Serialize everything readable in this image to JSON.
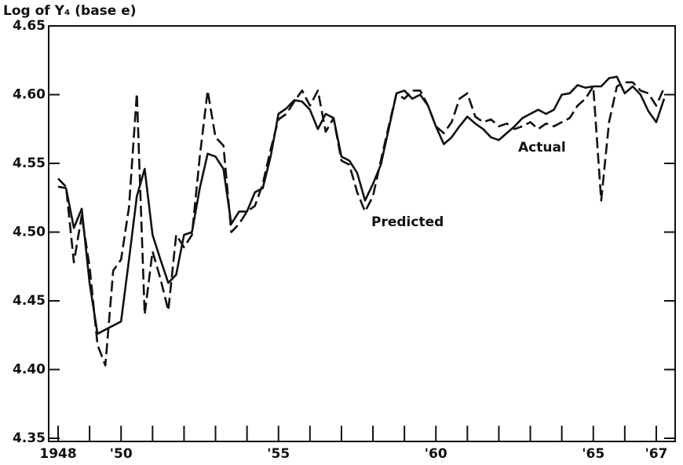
{
  "chart_data": {
    "type": "line",
    "y_axis_label": "Log of Y₄ (base e)",
    "x": [
      1948,
      1948.25,
      1948.5,
      1948.75,
      1949,
      1949.25,
      1949.5,
      1949.75,
      1950,
      1950.25,
      1950.5,
      1950.75,
      1951,
      1951.25,
      1951.5,
      1951.75,
      1952,
      1952.25,
      1952.5,
      1952.75,
      1953,
      1953.25,
      1953.5,
      1953.75,
      1954,
      1954.25,
      1954.5,
      1954.75,
      1955,
      1955.25,
      1955.5,
      1955.75,
      1956,
      1956.25,
      1956.5,
      1956.75,
      1957,
      1957.25,
      1957.5,
      1957.75,
      1958,
      1958.25,
      1958.5,
      1958.75,
      1959,
      1959.25,
      1959.5,
      1959.75,
      1960,
      1960.25,
      1960.5,
      1960.75,
      1961,
      1961.25,
      1961.5,
      1961.75,
      1962,
      1962.25,
      1962.5,
      1962.75,
      1963,
      1963.25,
      1963.5,
      1963.75,
      1964,
      1964.25,
      1964.5,
      1964.75,
      1965,
      1965.25,
      1965.5,
      1965.75,
      1966,
      1966.25,
      1966.5,
      1966.75,
      1967,
      1967.25
    ],
    "series": [
      {
        "name": "Actual",
        "color": "#111111",
        "dashed": false,
        "values": [
          4.533,
          4.532,
          4.503,
          4.517,
          4.463,
          4.426,
          4.429,
          4.432,
          4.435,
          4.48,
          4.526,
          4.546,
          4.498,
          4.48,
          4.463,
          4.469,
          4.498,
          4.5,
          4.532,
          4.557,
          4.555,
          4.546,
          4.506,
          4.515,
          4.515,
          4.529,
          4.532,
          4.555,
          4.586,
          4.59,
          4.596,
          4.595,
          4.589,
          4.575,
          4.586,
          4.583,
          4.555,
          4.552,
          4.543,
          4.523,
          4.535,
          4.549,
          4.575,
          4.601,
          4.603,
          4.597,
          4.6,
          4.592,
          4.577,
          4.564,
          4.569,
          4.577,
          4.584,
          4.579,
          4.575,
          4.569,
          4.567,
          4.572,
          4.577,
          4.583,
          4.586,
          4.589,
          4.586,
          4.589,
          4.6,
          4.601,
          4.607,
          4.605,
          4.606,
          4.606,
          4.612,
          4.613,
          4.601,
          4.606,
          4.6,
          4.588,
          4.58,
          4.597
        ]
      },
      {
        "name": "Predicted",
        "color": "#111111",
        "dashed": true,
        "values": [
          4.539,
          4.533,
          4.478,
          4.512,
          4.475,
          4.418,
          4.403,
          4.472,
          4.48,
          4.518,
          4.601,
          4.44,
          4.486,
          4.466,
          4.443,
          4.498,
          4.489,
          4.498,
          4.555,
          4.603,
          4.569,
          4.563,
          4.5,
          4.506,
          4.515,
          4.519,
          4.535,
          4.56,
          4.582,
          4.586,
          4.595,
          4.603,
          4.592,
          4.603,
          4.573,
          4.583,
          4.552,
          4.549,
          4.529,
          4.515,
          4.526,
          4.552,
          4.577,
          4.601,
          4.597,
          4.603,
          4.603,
          4.592,
          4.577,
          4.572,
          4.58,
          4.597,
          4.601,
          4.584,
          4.58,
          4.582,
          4.577,
          4.579,
          4.575,
          4.577,
          4.58,
          4.575,
          4.579,
          4.577,
          4.58,
          4.583,
          4.592,
          4.597,
          4.606,
          4.523,
          4.58,
          4.606,
          4.609,
          4.609,
          4.603,
          4.601,
          4.592,
          4.605
        ]
      }
    ],
    "xlim": [
      1947.7,
      1967.6
    ],
    "ylim": [
      4.35,
      4.65
    ],
    "yticks": [
      4.35,
      {
        "value": 4.4,
        "label": "4.40"
      },
      4.45,
      {
        "value": 4.5,
        "label": "4.50"
      },
      4.55,
      {
        "value": 4.6,
        "label": "4.60"
      },
      4.65
    ],
    "xticks": [
      {
        "value": 1948,
        "label": "1948"
      },
      {
        "value": 1950,
        "label": "'50"
      },
      {
        "value": 1955,
        "label": "'55"
      },
      {
        "value": 1960,
        "label": "'60"
      },
      {
        "value": 1965,
        "label": "'65"
      },
      {
        "value": 1967,
        "label": "'67"
      }
    ],
    "xminorticks": [
      1948,
      1949,
      1950,
      1951,
      1952,
      1953,
      1954,
      1955,
      1956,
      1957,
      1958,
      1959,
      1960,
      1961,
      1962,
      1963,
      1964,
      1965,
      1966,
      1967
    ],
    "grid": false
  }
}
